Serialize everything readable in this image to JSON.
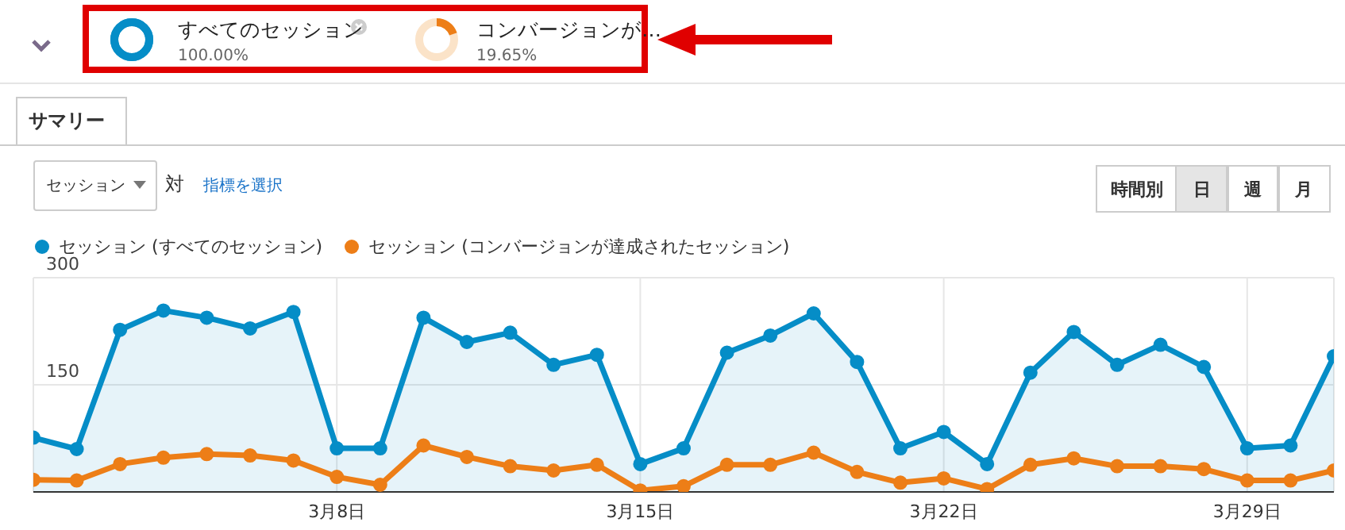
{
  "chart_data": {
    "type": "line",
    "categories": [
      null,
      null,
      null,
      null,
      null,
      null,
      null,
      "3月8日",
      null,
      null,
      null,
      null,
      null,
      null,
      "3月15日",
      null,
      null,
      null,
      null,
      null,
      null,
      "3月22日",
      null,
      null,
      null,
      null,
      null,
      null,
      "3月29日",
      null,
      null
    ],
    "series": [
      {
        "name": "セッション (すべてのセッション)",
        "type": "area",
        "color": "#058dc7",
        "values": [
          76,
          60,
          227,
          254,
          244,
          229,
          252,
          61,
          61,
          244,
          210,
          223,
          178,
          192,
          39,
          61,
          195,
          219,
          250,
          182,
          61,
          84,
          39,
          167,
          224,
          178,
          206,
          175,
          61,
          65,
          190
        ]
      },
      {
        "name": "セッション (コンバージョンが達成されたセッション)",
        "type": "line",
        "color": "#ed7e17",
        "values": [
          17,
          16,
          39,
          48,
          53,
          51,
          44,
          21,
          10,
          65,
          49,
          36,
          30,
          38,
          2,
          8,
          38,
          38,
          55,
          28,
          13,
          19,
          4,
          38,
          47,
          36,
          36,
          32,
          16,
          16,
          30
        ]
      }
    ],
    "ylim": [
      0,
      300
    ],
    "yticks": [
      150,
      300
    ],
    "grid": true,
    "legend": "top left",
    "marker": "circle",
    "annotations": [
      "すべてのセッション",
      "100.00%",
      "コンバージョンが…",
      "19.65%",
      "サマリー",
      "セッション",
      "対",
      "指標を選択",
      "時間別",
      "日",
      "週",
      "月"
    ]
  }
}
